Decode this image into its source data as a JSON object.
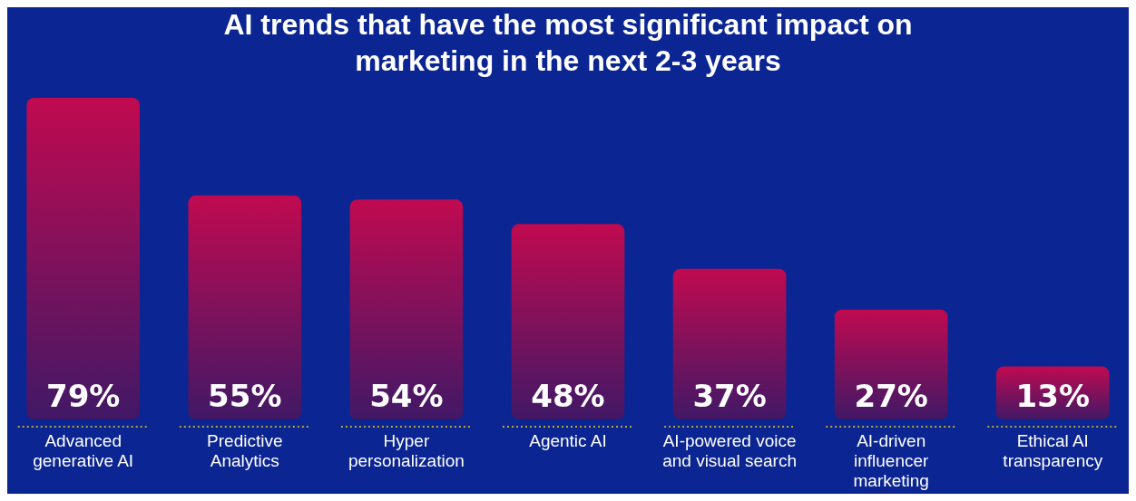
{
  "chart_data": {
    "type": "bar",
    "title": "AI trends that have the most significant impact on marketing in the next 2-3 years",
    "categories": [
      "Advanced generative AI",
      "Predictive Analytics",
      "Hyper personalization",
      "Agentic AI",
      "AI-powered voice and visual search",
      "AI-driven influencer marketing",
      "Ethical AI transparency"
    ],
    "series": [
      {
        "color": "#c00a50",
        "values": [
          79,
          55,
          54,
          48,
          37,
          27,
          13
        ],
        "value_labels": [
          "79%",
          "55%",
          "54%",
          "48%",
          "37%",
          "27%",
          "13%"
        ]
      }
    ],
    "grid": false
  }
}
